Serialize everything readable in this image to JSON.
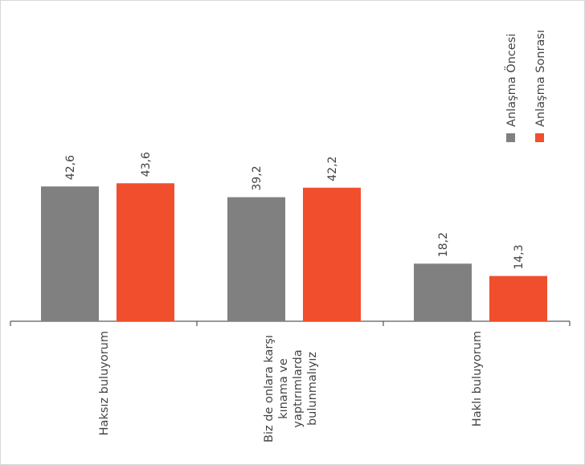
{
  "chart_data": {
    "type": "bar",
    "title": "",
    "xlabel": "",
    "ylabel": "",
    "categories": [
      "Haksız buluyorum",
      "Biz de onlara karşı kınama ve yaptırımlarda bulunmalıyız",
      "Haklı buluyorum"
    ],
    "category_lines": [
      [
        "Haksız buluyorum"
      ],
      [
        "Biz de onlara karşı",
        "kınama ve",
        "yaptırımlarda",
        "bulunmalıyız"
      ],
      [
        "Haklı buluyorum"
      ]
    ],
    "series": [
      {
        "name": "Anlaşma Öncesi",
        "values": [
          42.6,
          39.2,
          18.2
        ],
        "labels": [
          "42,6",
          "39,2",
          "18,2"
        ],
        "color": "#808080"
      },
      {
        "name": "Anlaşma Sonrası",
        "values": [
          43.6,
          42.2,
          14.3
        ],
        "labels": [
          "43,6",
          "42,2",
          "14,3"
        ],
        "color": "#f04e2c"
      }
    ],
    "ylim": [
      0,
      100
    ],
    "grid": false,
    "y_axis_visible": false,
    "legend_position": "top-right",
    "orientation": "rotated labels"
  }
}
